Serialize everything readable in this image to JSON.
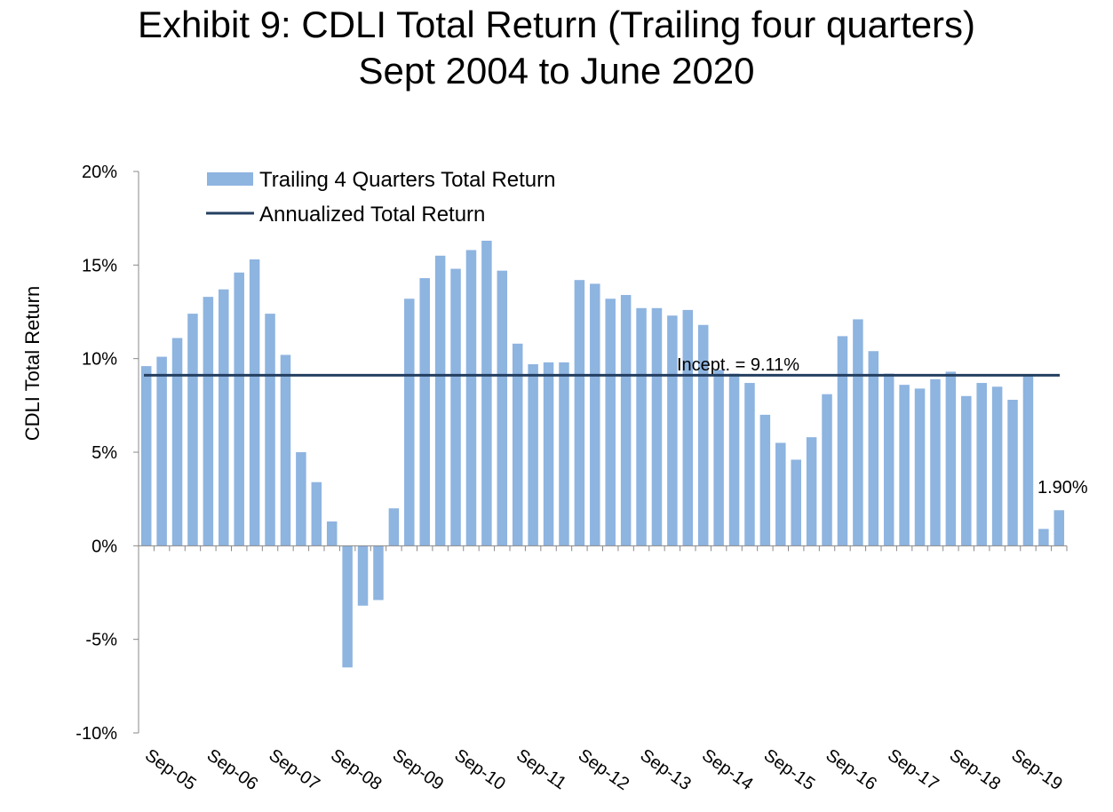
{
  "chart_data": {
    "type": "bar",
    "title": "Exhibit 9:  CDLI Total Return (Trailing four quarters)",
    "subtitle": "Sept 2004 to June 2020",
    "ylabel": "CDLI Total Return",
    "xlabel": "",
    "ylim": [
      -10,
      20
    ],
    "yticks": [
      -10,
      -5,
      0,
      5,
      10,
      15,
      20
    ],
    "ytick_labels": [
      "-10%",
      "-5%",
      "0%",
      "5%",
      "10%",
      "15%",
      "20%"
    ],
    "xtick_labels": [
      "Sep-05",
      "Sep-06",
      "Sep-07",
      "Sep-08",
      "Sep-09",
      "Sep-10",
      "Sep-11",
      "Sep-12",
      "Sep-13",
      "Sep-14",
      "Sep-15",
      "Sep-16",
      "Sep-17",
      "Sep-18",
      "Sep-19"
    ],
    "legend": {
      "placement": "top-left",
      "entries": [
        "Trailing 4 Quarters Total Return",
        "Annualized Total Return"
      ]
    },
    "series": [
      {
        "name": "Trailing 4 Quarters Total Return",
        "type": "bar",
        "color": "#8EB4E0",
        "values": [
          9.6,
          10.1,
          11.1,
          12.4,
          13.3,
          13.7,
          14.6,
          15.3,
          12.4,
          10.2,
          5.0,
          3.4,
          1.3,
          -6.5,
          -3.2,
          -2.9,
          2.0,
          13.2,
          14.3,
          15.5,
          14.8,
          15.8,
          16.3,
          14.7,
          10.8,
          9.7,
          9.8,
          9.8,
          14.2,
          14.0,
          13.2,
          13.4,
          12.7,
          12.7,
          12.3,
          12.6,
          11.8,
          9.4,
          9.2,
          8.7,
          7.0,
          5.5,
          4.6,
          5.8,
          8.1,
          11.2,
          12.1,
          10.4,
          9.2,
          8.6,
          8.4,
          8.9,
          9.3,
          8.0,
          8.7,
          8.5,
          7.8,
          9.1,
          0.9,
          1.9
        ]
      },
      {
        "name": "Annualized Total Return",
        "type": "line",
        "color": "#243F60",
        "value": 9.11
      }
    ],
    "annotations": [
      "Incept. = 9.11%",
      "1.90%"
    ]
  }
}
